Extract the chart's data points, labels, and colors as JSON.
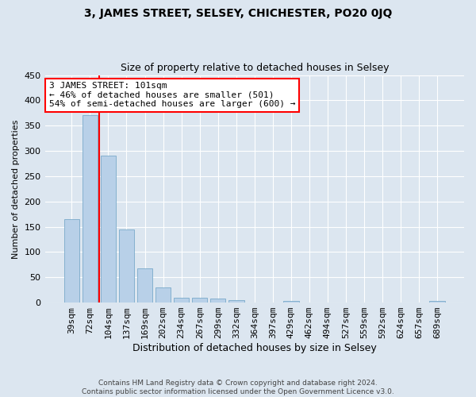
{
  "title": "3, JAMES STREET, SELSEY, CHICHESTER, PO20 0JQ",
  "subtitle": "Size of property relative to detached houses in Selsey",
  "xlabel": "Distribution of detached houses by size in Selsey",
  "ylabel": "Number of detached properties",
  "footer_line1": "Contains HM Land Registry data © Crown copyright and database right 2024.",
  "footer_line2": "Contains public sector information licensed under the Open Government Licence v3.0.",
  "categories": [
    "39sqm",
    "72sqm",
    "104sqm",
    "137sqm",
    "169sqm",
    "202sqm",
    "234sqm",
    "267sqm",
    "299sqm",
    "332sqm",
    "364sqm",
    "397sqm",
    "429sqm",
    "462sqm",
    "494sqm",
    "527sqm",
    "559sqm",
    "592sqm",
    "624sqm",
    "657sqm",
    "689sqm"
  ],
  "values": [
    165,
    370,
    290,
    145,
    67,
    30,
    10,
    10,
    8,
    5,
    0,
    0,
    3,
    0,
    0,
    0,
    0,
    0,
    0,
    0,
    3
  ],
  "bar_color": "#b8d0e8",
  "bar_edgecolor": "#7aaaca",
  "red_line_x": 1.5,
  "annotation_line1": "3 JAMES STREET: 101sqm",
  "annotation_line2": "← 46% of detached houses are smaller (501)",
  "annotation_line3": "54% of semi-detached houses are larger (600) →",
  "annotation_box_color": "white",
  "annotation_box_edgecolor": "red",
  "ylim": [
    0,
    450
  ],
  "yticks": [
    0,
    50,
    100,
    150,
    200,
    250,
    300,
    350,
    400,
    450
  ],
  "background_color": "#dce6f0",
  "plot_background_color": "#dce6f0",
  "grid_color": "white",
  "title_fontsize": 10,
  "subtitle_fontsize": 9,
  "xlabel_fontsize": 9,
  "ylabel_fontsize": 8,
  "tick_fontsize": 8,
  "annotation_fontsize": 8
}
